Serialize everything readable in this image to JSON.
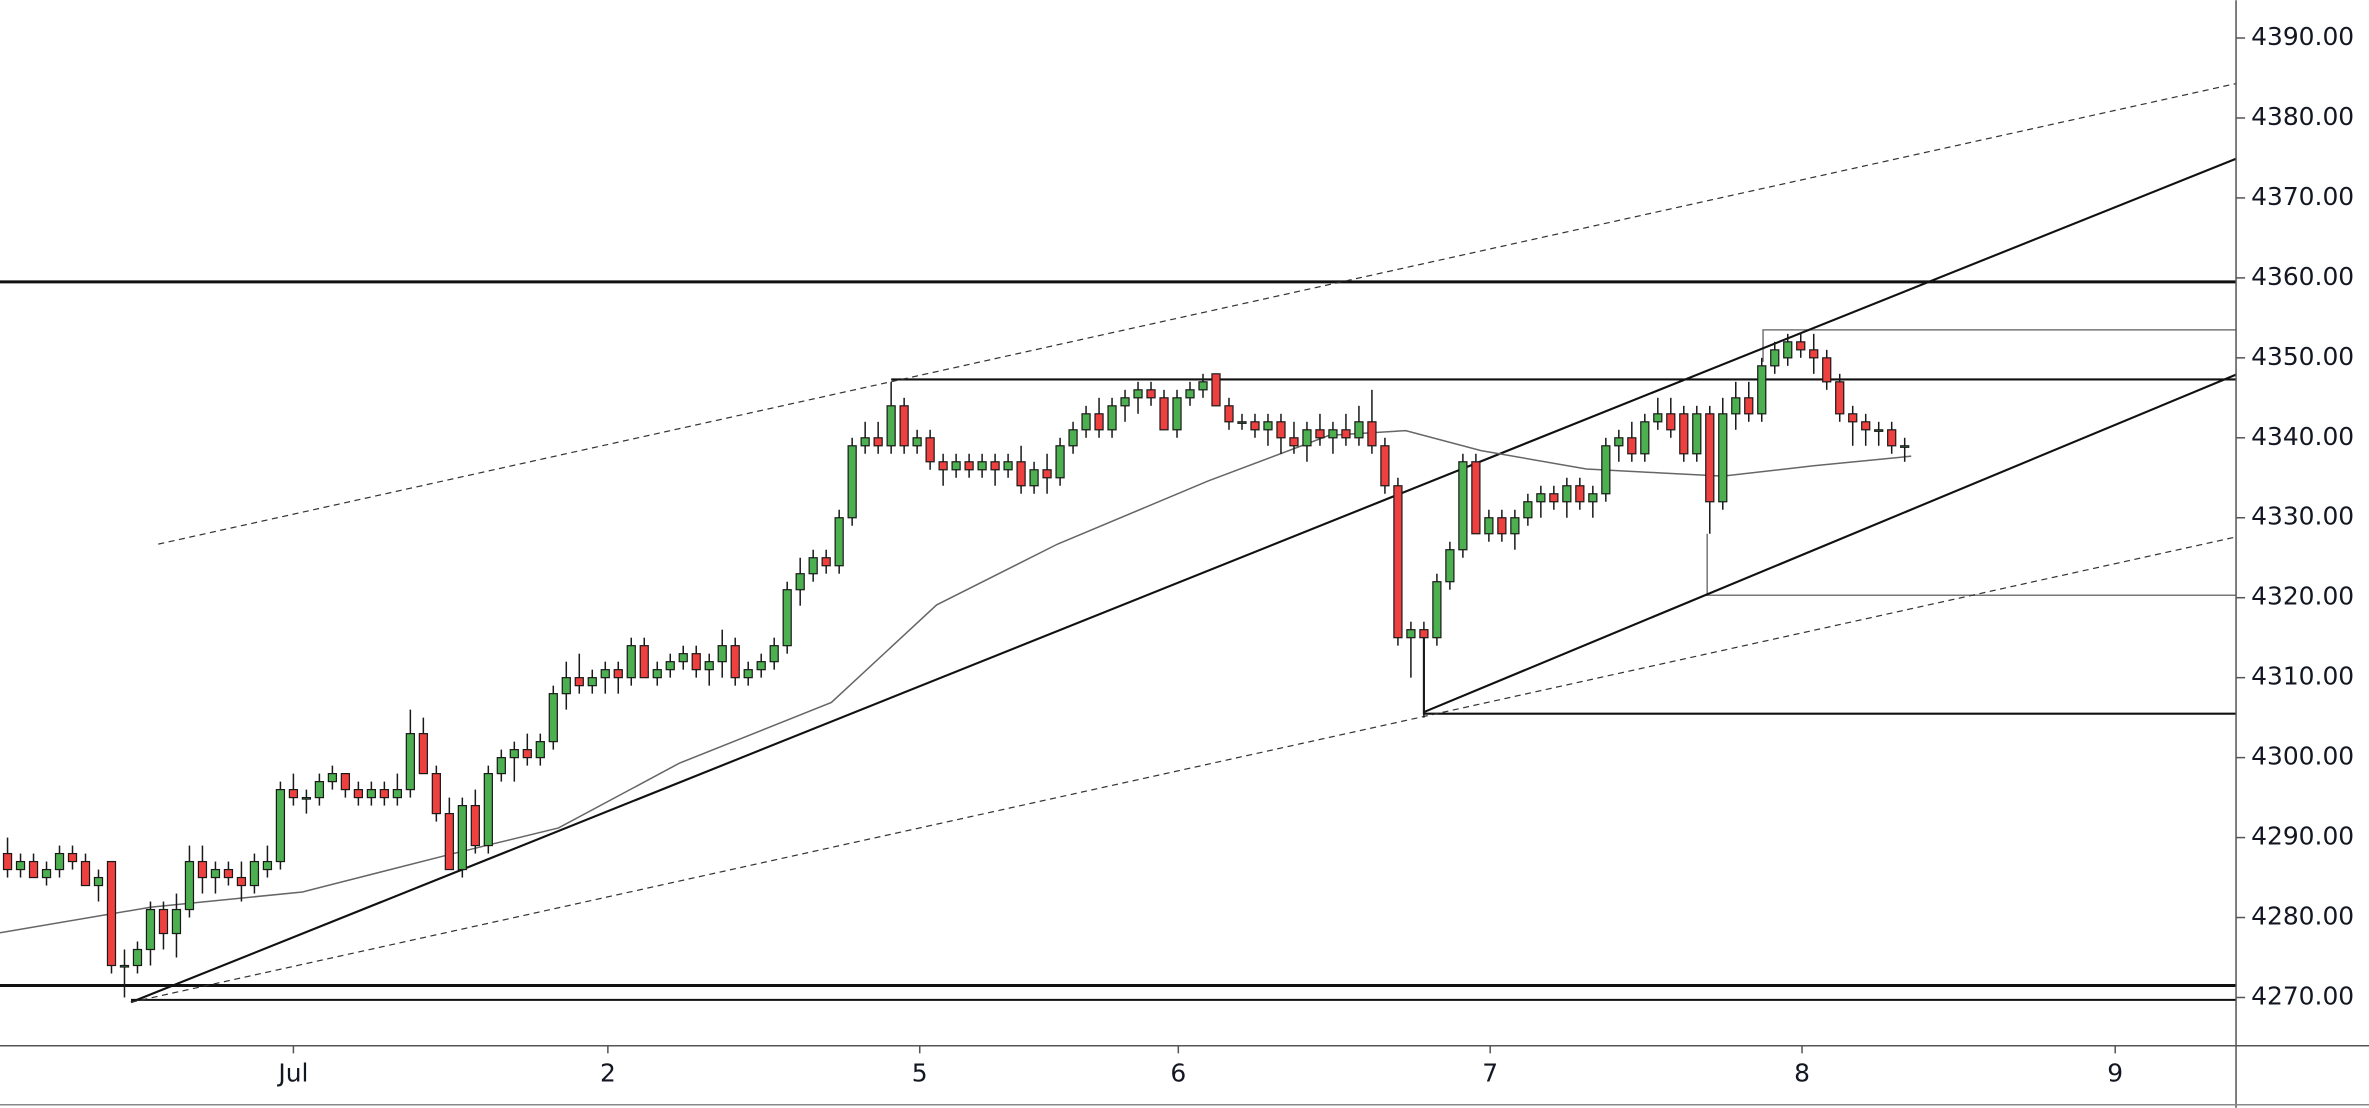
{
  "chart_data": {
    "type": "candlestick",
    "up_color": "#4caf50",
    "down_color": "#ef4040",
    "outline_color": "#1a1a1a",
    "xlim": [
      -0.58,
      171.5
    ],
    "ylim": [
      4263.96,
      4394.72
    ],
    "xticks": [
      {
        "value": 22,
        "label": "Jul"
      },
      {
        "value": 46.2,
        "label": "2"
      },
      {
        "value": 70.2,
        "label": "5"
      },
      {
        "value": 90.1,
        "label": "6"
      },
      {
        "value": 114.1,
        "label": "7"
      },
      {
        "value": 138.1,
        "label": "8"
      },
      {
        "value": 162.2,
        "label": "9"
      }
    ],
    "yticks": [
      {
        "value": 4270,
        "label": "4270.00"
      },
      {
        "value": 4280,
        "label": "4280.00"
      },
      {
        "value": 4290,
        "label": "4290.00"
      },
      {
        "value": 4300,
        "label": "4300.00"
      },
      {
        "value": 4310,
        "label": "4310.00"
      },
      {
        "value": 4320,
        "label": "4320.00"
      },
      {
        "value": 4330,
        "label": "4330.00"
      },
      {
        "value": 4340,
        "label": "4340.00"
      },
      {
        "value": 4350,
        "label": "4350.00"
      },
      {
        "value": 4360,
        "label": "4360.00"
      },
      {
        "value": 4370,
        "label": "4370.00"
      },
      {
        "value": 4380,
        "label": "4380.00"
      },
      {
        "value": 4390,
        "label": "4390.00"
      }
    ],
    "candles": [
      [
        4288,
        4290,
        4285,
        4286
      ],
      [
        4286,
        4288,
        4285,
        4287
      ],
      [
        4287,
        4288,
        4285,
        4285
      ],
      [
        4285,
        4287,
        4284,
        4286
      ],
      [
        4286,
        4289,
        4285,
        4288
      ],
      [
        4288,
        4289,
        4286,
        4287
      ],
      [
        4287,
        4288,
        4284,
        4284
      ],
      [
        4284,
        4286,
        4282,
        4285
      ],
      [
        4287,
        4287,
        4273,
        4274
      ],
      [
        4274,
        4276,
        4270,
        4274
      ],
      [
        4274,
        4277,
        4273,
        4276
      ],
      [
        4276,
        4282,
        4274,
        4281
      ],
      [
        4281,
        4282,
        4276,
        4278
      ],
      [
        4278,
        4283,
        4275,
        4281
      ],
      [
        4281,
        4289,
        4280,
        4287
      ],
      [
        4287,
        4289,
        4283,
        4285
      ],
      [
        4285,
        4287,
        4283,
        4286
      ],
      [
        4286,
        4287,
        4284,
        4285
      ],
      [
        4285,
        4287,
        4282,
        4284
      ],
      [
        4284,
        4288,
        4283,
        4287
      ],
      [
        4286,
        4289,
        4285,
        4287
      ],
      [
        4287,
        4297,
        4286,
        4296
      ],
      [
        4296,
        4298,
        4294,
        4295
      ],
      [
        4295,
        4296,
        4293,
        4295
      ],
      [
        4295,
        4298,
        4294,
        4297
      ],
      [
        4297,
        4299,
        4296,
        4298
      ],
      [
        4298,
        4298,
        4295,
        4296
      ],
      [
        4296,
        4297,
        4294,
        4295
      ],
      [
        4295,
        4297,
        4294,
        4296
      ],
      [
        4296,
        4297,
        4294,
        4295
      ],
      [
        4295,
        4298,
        4294,
        4296
      ],
      [
        4296,
        4306,
        4295,
        4303
      ],
      [
        4303,
        4305,
        4298,
        4298
      ],
      [
        4298,
        4299,
        4292,
        4293
      ],
      [
        4293,
        4295,
        4286,
        4286
      ],
      [
        4286,
        4295,
        4285,
        4294
      ],
      [
        4294,
        4296,
        4288,
        4289
      ],
      [
        4289,
        4299,
        4288,
        4298
      ],
      [
        4298,
        4301,
        4297,
        4300
      ],
      [
        4300,
        4302,
        4297,
        4301
      ],
      [
        4301,
        4303,
        4299,
        4300
      ],
      [
        4300,
        4303,
        4299,
        4302
      ],
      [
        4302,
        4309,
        4301,
        4308
      ],
      [
        4308,
        4312,
        4306,
        4310
      ],
      [
        4310,
        4313,
        4308,
        4309
      ],
      [
        4309,
        4311,
        4308,
        4310
      ],
      [
        4310,
        4312,
        4308,
        4311
      ],
      [
        4311,
        4312,
        4308,
        4310
      ],
      [
        4310,
        4315,
        4309,
        4314
      ],
      [
        4314,
        4315,
        4310,
        4310
      ],
      [
        4310,
        4312,
        4309,
        4311
      ],
      [
        4311,
        4313,
        4310,
        4312
      ],
      [
        4312,
        4314,
        4311,
        4313
      ],
      [
        4313,
        4314,
        4310,
        4311
      ],
      [
        4311,
        4313,
        4309,
        4312
      ],
      [
        4312,
        4316,
        4310,
        4314
      ],
      [
        4314,
        4315,
        4309,
        4310
      ],
      [
        4310,
        4312,
        4309,
        4311
      ],
      [
        4311,
        4313,
        4310,
        4312
      ],
      [
        4312,
        4315,
        4311,
        4314
      ],
      [
        4314,
        4322,
        4313,
        4321
      ],
      [
        4321,
        4325,
        4319,
        4323
      ],
      [
        4323,
        4326,
        4322,
        4325
      ],
      [
        4325,
        4326,
        4323,
        4324
      ],
      [
        4324,
        4331,
        4323,
        4330
      ],
      [
        4330,
        4340,
        4329,
        4339
      ],
      [
        4339,
        4342,
        4338,
        4340
      ],
      [
        4340,
        4342,
        4338,
        4339
      ],
      [
        4339,
        4347,
        4338,
        4344
      ],
      [
        4344,
        4345,
        4338,
        4339
      ],
      [
        4339,
        4341,
        4338,
        4340
      ],
      [
        4340,
        4341,
        4336,
        4337
      ],
      [
        4337,
        4338,
        4334,
        4336
      ],
      [
        4336,
        4338,
        4335,
        4337
      ],
      [
        4337,
        4338,
        4335,
        4336
      ],
      [
        4336,
        4338,
        4335,
        4337
      ],
      [
        4337,
        4338,
        4334,
        4336
      ],
      [
        4336,
        4338,
        4335,
        4337
      ],
      [
        4337,
        4339,
        4333,
        4334
      ],
      [
        4334,
        4337,
        4333,
        4336
      ],
      [
        4336,
        4338,
        4333,
        4335
      ],
      [
        4335,
        4340,
        4334,
        4339
      ],
      [
        4339,
        4342,
        4338,
        4341
      ],
      [
        4341,
        4344,
        4340,
        4343
      ],
      [
        4343,
        4345,
        4340,
        4341
      ],
      [
        4341,
        4345,
        4340,
        4344
      ],
      [
        4344,
        4346,
        4342,
        4345
      ],
      [
        4345,
        4347,
        4343,
        4346
      ],
      [
        4346,
        4347,
        4344,
        4345
      ],
      [
        4345,
        4346,
        4341,
        4341
      ],
      [
        4341,
        4346,
        4340,
        4345
      ],
      [
        4345,
        4347,
        4344,
        4346
      ],
      [
        4346,
        4348,
        4345,
        4347
      ],
      [
        4348,
        4348,
        4344,
        4344
      ],
      [
        4344,
        4345,
        4341,
        4342
      ],
      [
        4342,
        4343,
        4341,
        4342
      ],
      [
        4342,
        4343,
        4340,
        4341
      ],
      [
        4341,
        4343,
        4339,
        4342
      ],
      [
        4342,
        4343,
        4338,
        4340
      ],
      [
        4340,
        4342,
        4338,
        4339
      ],
      [
        4339,
        4342,
        4337,
        4341
      ],
      [
        4341,
        4343,
        4339,
        4340
      ],
      [
        4340,
        4342,
        4338,
        4341
      ],
      [
        4341,
        4343,
        4339,
        4340
      ],
      [
        4340,
        4344,
        4339,
        4342
      ],
      [
        4342,
        4346,
        4338,
        4339
      ],
      [
        4339,
        4340,
        4333,
        4334
      ],
      [
        4334,
        4335,
        4314,
        4315
      ],
      [
        4315,
        4317,
        4310,
        4316
      ],
      [
        4316,
        4317,
        4305,
        4315
      ],
      [
        4315,
        4323,
        4314,
        4322
      ],
      [
        4322,
        4327,
        4321,
        4326
      ],
      [
        4326,
        4338,
        4325,
        4337
      ],
      [
        4337,
        4338,
        4328,
        4328
      ],
      [
        4328,
        4331,
        4327,
        4330
      ],
      [
        4330,
        4331,
        4327,
        4328
      ],
      [
        4328,
        4331,
        4326,
        4330
      ],
      [
        4330,
        4333,
        4329,
        4332
      ],
      [
        4332,
        4334,
        4330,
        4333
      ],
      [
        4333,
        4334,
        4331,
        4332
      ],
      [
        4332,
        4335,
        4330,
        4334
      ],
      [
        4334,
        4335,
        4331,
        4332
      ],
      [
        4332,
        4334,
        4330,
        4333
      ],
      [
        4333,
        4340,
        4332,
        4339
      ],
      [
        4339,
        4341,
        4337,
        4340
      ],
      [
        4340,
        4342,
        4337,
        4338
      ],
      [
        4338,
        4343,
        4337,
        4342
      ],
      [
        4342,
        4345,
        4341,
        4343
      ],
      [
        4343,
        4345,
        4340,
        4341
      ],
      [
        4343,
        4344,
        4337,
        4338
      ],
      [
        4338,
        4344,
        4337,
        4343
      ],
      [
        4343,
        4344,
        4328,
        4332
      ],
      [
        4332,
        4345,
        4331,
        4343
      ],
      [
        4343,
        4347,
        4341,
        4345
      ],
      [
        4345,
        4347,
        4342,
        4343
      ],
      [
        4343,
        4350,
        4342,
        4349
      ],
      [
        4349,
        4352,
        4348,
        4351
      ],
      [
        4350,
        4353,
        4349,
        4352
      ],
      [
        4352,
        4353,
        4350,
        4351
      ],
      [
        4351,
        4353,
        4348,
        4350
      ],
      [
        4350,
        4351,
        4346,
        4347
      ],
      [
        4347,
        4348,
        4342,
        4343
      ],
      [
        4343,
        4344,
        4339,
        4342
      ],
      [
        4342,
        4343,
        4339,
        4341
      ],
      [
        4341,
        4342,
        4339,
        4341
      ],
      [
        4341,
        4342,
        4338,
        4339
      ],
      [
        4339,
        4340,
        4337,
        4339
      ]
    ],
    "drawings": [
      {
        "style": "bold",
        "x": [
          -0.58,
          171.5
        ],
        "y": [
          4359.5,
          4359.5
        ]
      },
      {
        "style": "bold",
        "x": [
          -0.58,
          171.5
        ],
        "y": [
          4271.5,
          4271.5
        ]
      },
      {
        "style": "solid",
        "x": [
          9.5,
          171.5
        ],
        "y": [
          4269.7,
          4269.7
        ]
      },
      {
        "style": "solid",
        "x": [
          68,
          171.5
        ],
        "y": [
          4347.3,
          4347.3
        ]
      },
      {
        "style": "thin",
        "x": [
          135.1,
          135.1,
          171.5
        ],
        "y": [
          4349.5,
          4353.5,
          4353.5
        ]
      },
      {
        "style": "thin",
        "x": [
          130.8,
          130.8,
          171.5
        ],
        "y": [
          4328,
          4320.3,
          4320.3
        ]
      },
      {
        "style": "solid",
        "x": [
          109,
          109,
          171.5
        ],
        "y": [
          4315,
          4305.5,
          4305.5
        ]
      },
      {
        "style": "solid",
        "x": [
          9.5,
          171.5
        ],
        "y": [
          4269.4,
          4374.9
        ]
      },
      {
        "style": "solid",
        "x": [
          109,
          171.5
        ],
        "y": [
          4305.7,
          4347.9
        ]
      },
      {
        "style": "dashed",
        "x": [
          11.6,
          171.5
        ],
        "y": [
          4326.7,
          4384.3
        ]
      },
      {
        "style": "dashed",
        "x": [
          9.5,
          171.5
        ],
        "y": [
          4269.4,
          4327.6
        ]
      },
      {
        "style": "average",
        "x": [
          -0.58,
          11.05,
          22.7,
          34.3,
          42.4,
          51.7,
          63.4,
          71.5,
          80.8,
          92.4,
          101.7,
          107.6,
          113.4,
          121.5,
          127.3,
          132,
          139,
          146.5
        ],
        "y": [
          4278.1,
          4281.3,
          4283.2,
          4288.0,
          4291.2,
          4299.3,
          4306.9,
          4319.1,
          4326.7,
          4334.6,
          4340.3,
          4340.9,
          4338.4,
          4336.1,
          4335.6,
          4335.2,
          4336.5,
          4337.7
        ]
      }
    ]
  }
}
